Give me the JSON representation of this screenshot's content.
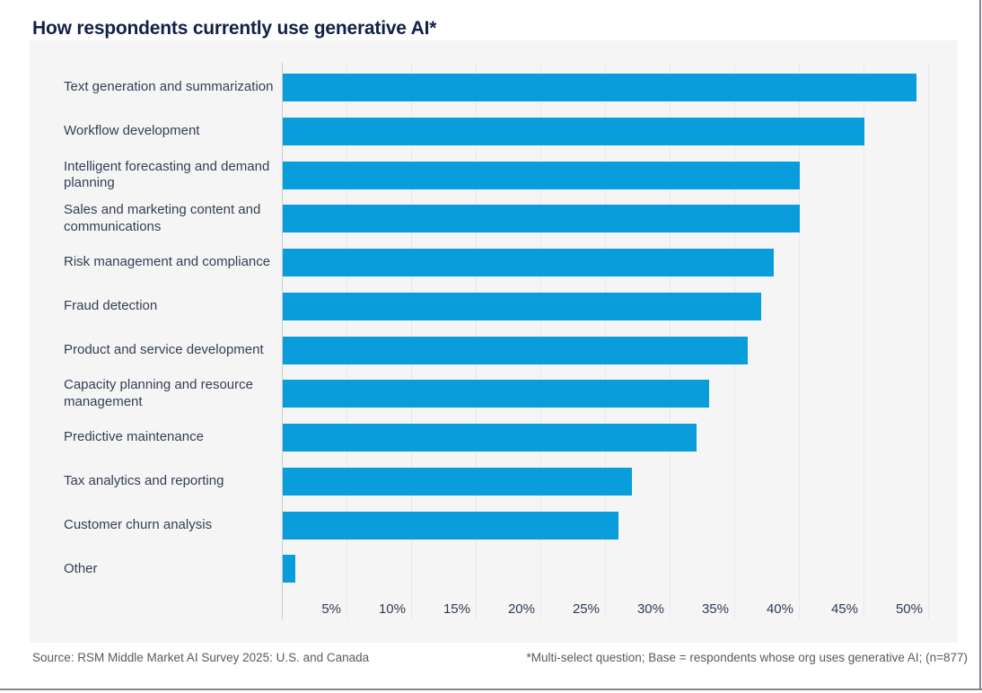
{
  "title": "How respondents currently use generative AI*",
  "footer": {
    "source": "Source: RSM Middle Market AI Survey 2025: U.S. and Canada",
    "note": "*Multi-select question; Base = respondents whose org uses generative AI; (n=877)"
  },
  "colors": {
    "bar": "#0A9DDC",
    "title_text": "#122148",
    "panel_bg": "#F5F5F5",
    "label_text": "#343F55",
    "tick_text": "#2E3A55",
    "footer_text": "#595A5C",
    "gridline": "#E8E9EB",
    "axis_line": "#C9CCD0",
    "border": "#85888B"
  },
  "chart_data": {
    "type": "bar",
    "orientation": "horizontal",
    "title": "How respondents currently use generative AI*",
    "categories": [
      "Text generation and summarization",
      "Workflow development",
      "Intelligent forecasting and demand\nplanning",
      "Sales and marketing content and\ncommunications",
      "Risk management and compliance",
      "Fraud detection",
      "Product and service development",
      "Capacity planning and resource\nmanagement",
      "Predictive maintenance",
      "Tax analytics and reporting",
      "Customer churn analysis",
      "Other"
    ],
    "values": [
      49,
      45,
      40,
      40,
      38,
      37,
      36,
      33,
      32,
      27,
      26,
      1
    ],
    "unit": "%",
    "x_ticks": [
      "5%",
      "10%",
      "15%",
      "20%",
      "25%",
      "30%",
      "35%",
      "40%",
      "45%",
      "50%"
    ],
    "xlim": [
      0,
      50
    ],
    "grid": true,
    "legend": false,
    "bar_color": "#0A9DDC"
  }
}
